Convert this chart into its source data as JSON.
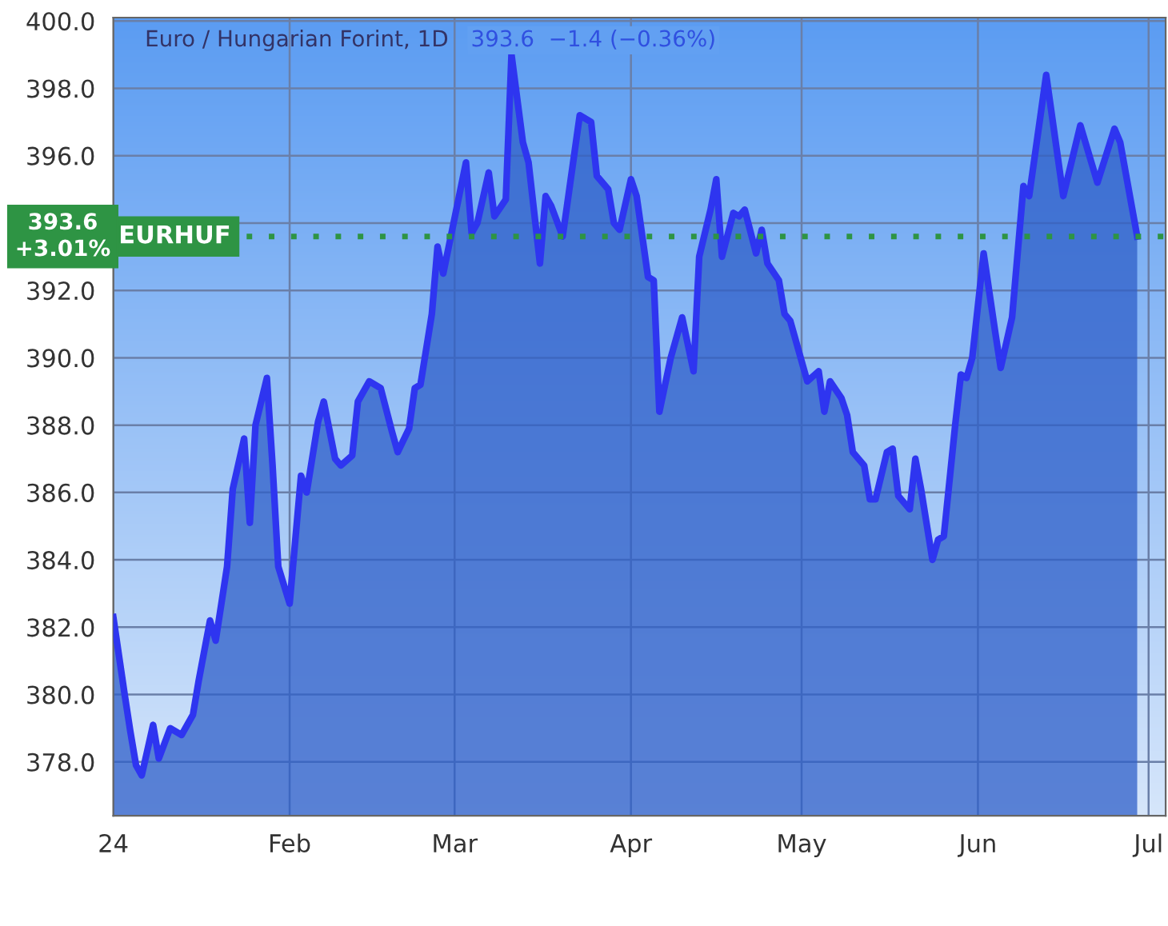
{
  "chart_data": {
    "type": "area",
    "title": "Euro / Hungarian Forint, 1D",
    "subtitle": "393.6  −1.4 (−0.36%)",
    "x": [
      "2024-01-01",
      "2024-01-03",
      "2024-01-04",
      "2024-01-05",
      "2024-01-06",
      "2024-01-08",
      "2024-01-09",
      "2024-01-11",
      "2024-01-12",
      "2024-01-13",
      "2024-01-15",
      "2024-01-16",
      "2024-01-18",
      "2024-01-19",
      "2024-01-21",
      "2024-01-22",
      "2024-01-24",
      "2024-01-25",
      "2024-01-26",
      "2024-01-28",
      "2024-01-29",
      "2024-01-30",
      "2024-02-01",
      "2024-02-03",
      "2024-02-04",
      "2024-02-06",
      "2024-02-07",
      "2024-02-09",
      "2024-02-10",
      "2024-02-12",
      "2024-02-13",
      "2024-02-15",
      "2024-02-17",
      "2024-02-19",
      "2024-02-20",
      "2024-02-22",
      "2024-02-23",
      "2024-02-24",
      "2024-02-26",
      "2024-02-27",
      "2024-02-28",
      "2024-03-03",
      "2024-03-04",
      "2024-03-05",
      "2024-03-07",
      "2024-03-08",
      "2024-03-10",
      "2024-03-11",
      "2024-03-13",
      "2024-03-14",
      "2024-03-16",
      "2024-03-17",
      "2024-03-18",
      "2024-03-20",
      "2024-03-23",
      "2024-03-25",
      "2024-03-26",
      "2024-03-28",
      "2024-03-29",
      "2024-03-30",
      "2024-04-01",
      "2024-04-02",
      "2024-04-04",
      "2024-04-05",
      "2024-04-06",
      "2024-04-08",
      "2024-04-10",
      "2024-04-12",
      "2024-04-13",
      "2024-04-15",
      "2024-04-16",
      "2024-04-17",
      "2024-04-19",
      "2024-04-20",
      "2024-04-21",
      "2024-04-23",
      "2024-04-24",
      "2024-04-25",
      "2024-04-27",
      "2024-04-28",
      "2024-04-29",
      "2024-04-30",
      "2024-05-02",
      "2024-05-04",
      "2024-05-05",
      "2024-05-06",
      "2024-05-08",
      "2024-05-09",
      "2024-05-10",
      "2024-05-12",
      "2024-05-13",
      "2024-05-14",
      "2024-05-16",
      "2024-05-17",
      "2024-05-18",
      "2024-05-20",
      "2024-05-21",
      "2024-05-22",
      "2024-05-24",
      "2024-05-25",
      "2024-05-26",
      "2024-05-28",
      "2024-05-29",
      "2024-05-30",
      "2024-05-31",
      "2024-06-02",
      "2024-06-04",
      "2024-06-05",
      "2024-06-07",
      "2024-06-09",
      "2024-06-10",
      "2024-06-13",
      "2024-06-16",
      "2024-06-19",
      "2024-06-22",
      "2024-06-25",
      "2024-06-26",
      "2024-06-29"
    ],
    "series": [
      {
        "color": "#2e35f0",
        "values": [
          382.3,
          380.0,
          378.9,
          377.9,
          377.6,
          379.1,
          378.1,
          379.0,
          378.9,
          378.8,
          379.4,
          380.4,
          382.2,
          381.6,
          383.8,
          386.1,
          387.6,
          385.1,
          388.0,
          389.4,
          386.8,
          383.8,
          382.7,
          386.5,
          386.0,
          388.1,
          388.7,
          387.0,
          386.8,
          387.1,
          388.7,
          389.3,
          389.1,
          387.8,
          387.2,
          387.9,
          389.1,
          389.2,
          391.3,
          393.3,
          392.5,
          395.8,
          393.7,
          394.0,
          395.5,
          394.2,
          394.7,
          399.0,
          396.4,
          395.8,
          392.8,
          394.8,
          394.5,
          393.6,
          397.2,
          397.0,
          395.4,
          395.0,
          394.0,
          393.8,
          395.3,
          394.8,
          392.4,
          392.3,
          388.4,
          390.0,
          391.2,
          389.6,
          393.0,
          394.4,
          395.3,
          393.0,
          394.3,
          394.2,
          394.4,
          393.1,
          393.8,
          392.8,
          392.3,
          391.3,
          391.1,
          390.5,
          389.3,
          389.6,
          388.4,
          389.3,
          388.8,
          388.3,
          387.2,
          386.8,
          385.8,
          385.8,
          387.2,
          387.3,
          385.9,
          385.5,
          387.0,
          386.1,
          384.0,
          384.6,
          384.7,
          388.0,
          389.5,
          389.4,
          390.0,
          393.1,
          390.8,
          389.7,
          391.2,
          395.1,
          394.8,
          398.4,
          394.8,
          396.9,
          395.2,
          396.8,
          396.4,
          393.6
        ]
      }
    ],
    "xlim": [
      "2024-01-01",
      "2024-07-04"
    ],
    "xticks": [
      {
        "value": "2024-01-01",
        "label": "24"
      },
      {
        "value": "2024-02-01",
        "label": "Feb"
      },
      {
        "value": "2024-03-01",
        "label": "Mar"
      },
      {
        "value": "2024-04-01",
        "label": "Apr"
      },
      {
        "value": "2024-05-01",
        "label": "May"
      },
      {
        "value": "2024-06-01",
        "label": "Jun"
      },
      {
        "value": "2024-07-01",
        "label": "Jul"
      }
    ],
    "ylim": [
      376.4,
      400.1
    ],
    "yticks": [
      {
        "value": 378,
        "label": "378.0"
      },
      {
        "value": 380,
        "label": "380.0"
      },
      {
        "value": 382,
        "label": "382.0"
      },
      {
        "value": 384,
        "label": "384.0"
      },
      {
        "value": 386,
        "label": "386.0"
      },
      {
        "value": 388,
        "label": "388.0"
      },
      {
        "value": 390,
        "label": "390.0"
      },
      {
        "value": 392,
        "label": "392.0"
      },
      {
        "value": 394,
        "label": null
      },
      {
        "value": 396,
        "label": "396.0"
      },
      {
        "value": 398,
        "label": "398.0"
      },
      {
        "value": 400,
        "label": "400.0"
      }
    ],
    "ref_lines": [
      {
        "axis": "y",
        "value": 393.6,
        "label": "EURHUF",
        "color": "#2e9444",
        "line_style": "dotted"
      }
    ],
    "annotations": [
      "393.6\n+3.01%"
    ],
    "grid": true,
    "marker": "none",
    "line_style": "solid"
  }
}
